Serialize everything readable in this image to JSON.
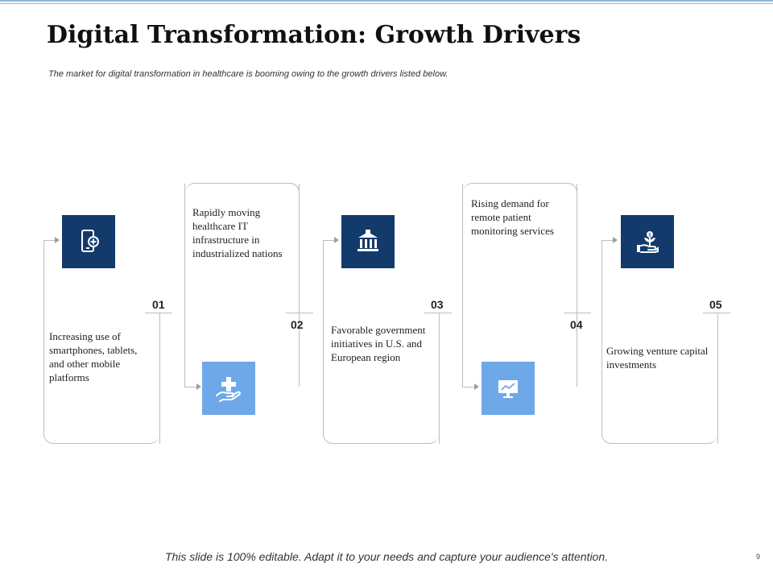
{
  "slide": {
    "title": "Digital Transformation: Growth Drivers",
    "subtitle": "The market for digital transformation in healthcare is booming owing to the growth drivers listed below.",
    "footer": "This slide is 100% editable.  Adapt it to your needs and capture your audience's attention.",
    "page_number": "9"
  },
  "drivers": [
    {
      "number": "01",
      "text": "Increasing use of smartphones, tablets, and other mobile platforms",
      "icon": "smartphone-plus-icon"
    },
    {
      "number": "02",
      "text": "Rapidly moving healthcare IT infrastructure in industrialized nations",
      "icon": "hand-cross-icon"
    },
    {
      "number": "03",
      "text": "Favorable government initiatives in U.S. and European region",
      "icon": "government-building-icon"
    },
    {
      "number": "04",
      "text": "Rising demand for remote patient monitoring services",
      "icon": "monitor-chart-icon"
    },
    {
      "number": "05",
      "text": "Growing venture capital investments",
      "icon": "hand-money-plant-icon"
    }
  ],
  "colors": {
    "dark_icon_bg": "#123a6b",
    "light_icon_bg": "#6fa8e8",
    "connector": "#bdbdbd"
  }
}
